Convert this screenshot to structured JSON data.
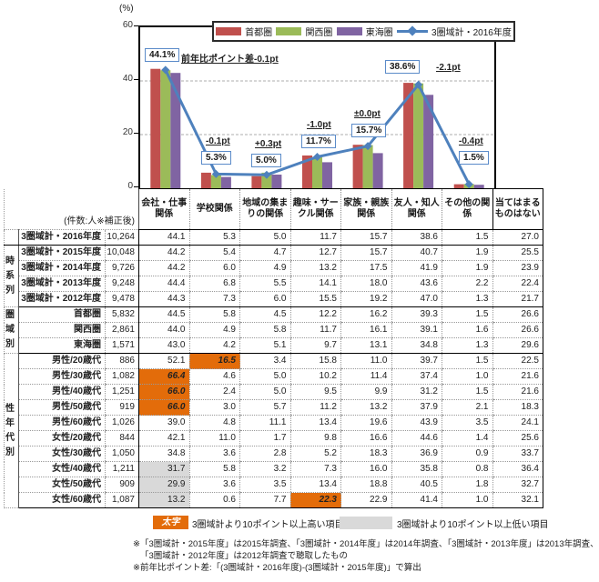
{
  "chart_data": {
    "type": "bar",
    "title": "",
    "ylabel": "(%)",
    "ylim": [
      0,
      60
    ],
    "yticks": [
      0,
      20,
      40,
      60
    ],
    "ytick_labels": [
      "60",
      "40",
      "20",
      "0"
    ],
    "gridlines": [
      20,
      40
    ],
    "legend_position": "top",
    "categories": [
      "会社・仕事関係",
      "学校関係",
      "地域の集まりの関係",
      "趣味・サークル関係",
      "家族・親族関係",
      "友人・知人関係",
      "その他の関係"
    ],
    "series": [
      {
        "name": "首都圏",
        "color": "#C0504D",
        "values": [
          44.5,
          5.8,
          4.5,
          12.2,
          16.2,
          39.3,
          1.5
        ]
      },
      {
        "name": "関西圏",
        "color": "#9BBB59",
        "values": [
          44.0,
          4.9,
          5.8,
          11.7,
          16.1,
          39.1,
          1.6
        ]
      },
      {
        "name": "東海圏",
        "color": "#8064A2",
        "values": [
          43.0,
          4.2,
          5.1,
          9.7,
          13.1,
          34.8,
          1.3
        ]
      }
    ],
    "line_series": {
      "name": "3圏域計・2016年度",
      "color": "#4E81BD",
      "values": [
        44.1,
        5.3,
        5.0,
        11.7,
        15.7,
        38.6,
        1.5
      ]
    },
    "point_labels": [
      {
        "pct": "44.1%",
        "diff": "前年比ポイント差-0.1pt"
      },
      {
        "pct": "5.3%",
        "diff": "-0.1pt"
      },
      {
        "pct": "5.0%",
        "diff": "+0.3pt"
      },
      {
        "pct": "11.7%",
        "diff": "-1.0pt"
      },
      {
        "pct": "15.7%",
        "diff": "±0.0pt"
      },
      {
        "pct": "38.6%",
        "diff": "-2.1pt"
      },
      {
        "pct": "1.5%",
        "diff": "-0.4pt"
      }
    ]
  },
  "table": {
    "count_header": "(件数:人※補正後)",
    "col_headers": [
      "会社・仕事関係",
      "学校関係",
      "地域の集まりの関係",
      "趣味・サークル関係",
      "家族・親族関係",
      "友人・知人関係",
      "その他の関係",
      "当てはまるものはない"
    ],
    "groups": [
      {
        "label": "",
        "rows": [
          {
            "label": "3圏域計・2016年度",
            "n": "10,264",
            "values": [
              "44.1",
              "5.3",
              "5.0",
              "11.7",
              "15.7",
              "38.6",
              "1.5",
              "27.0"
            ],
            "hi": [],
            "lo": []
          }
        ]
      },
      {
        "label": "時系列",
        "rows": [
          {
            "label": "3圏域計・2015年度",
            "n": "10,048",
            "values": [
              "44.2",
              "5.4",
              "4.7",
              "12.7",
              "15.7",
              "40.7",
              "1.9",
              "25.5"
            ],
            "hi": [],
            "lo": []
          },
          {
            "label": "3圏域計・2014年度",
            "n": "9,726",
            "values": [
              "44.2",
              "6.0",
              "4.9",
              "13.2",
              "17.5",
              "41.9",
              "1.9",
              "23.9"
            ],
            "hi": [],
            "lo": []
          },
          {
            "label": "3圏域計・2013年度",
            "n": "9,248",
            "values": [
              "44.4",
              "6.8",
              "5.5",
              "14.1",
              "18.0",
              "43.6",
              "2.2",
              "22.4"
            ],
            "hi": [],
            "lo": []
          },
          {
            "label": "3圏域計・2012年度",
            "n": "9,478",
            "values": [
              "44.3",
              "7.3",
              "6.0",
              "15.5",
              "19.2",
              "47.0",
              "1.3",
              "21.7"
            ],
            "hi": [],
            "lo": []
          }
        ]
      },
      {
        "label": "圏域別",
        "rows": [
          {
            "label": "首都圏",
            "n": "5,832",
            "values": [
              "44.5",
              "5.8",
              "4.5",
              "12.2",
              "16.2",
              "39.3",
              "1.5",
              "26.6"
            ],
            "hi": [],
            "lo": []
          },
          {
            "label": "関西圏",
            "n": "2,861",
            "values": [
              "44.0",
              "4.9",
              "5.8",
              "11.7",
              "16.1",
              "39.1",
              "1.6",
              "26.6"
            ],
            "hi": [],
            "lo": []
          },
          {
            "label": "東海圏",
            "n": "1,571",
            "values": [
              "43.0",
              "4.2",
              "5.1",
              "9.7",
              "13.1",
              "34.8",
              "1.3",
              "29.6"
            ],
            "hi": [],
            "lo": []
          }
        ]
      },
      {
        "label": "性年代別",
        "rows": [
          {
            "label": "男性/20歳代",
            "n": "886",
            "values": [
              "52.1",
              "16.5",
              "3.4",
              "15.8",
              "11.0",
              "39.7",
              "1.5",
              "22.5"
            ],
            "hi": [
              1
            ],
            "lo": []
          },
          {
            "label": "男性/30歳代",
            "n": "1,082",
            "values": [
              "66.4",
              "4.6",
              "5.0",
              "10.2",
              "11.4",
              "37.4",
              "1.0",
              "21.6"
            ],
            "hi": [
              0
            ],
            "lo": []
          },
          {
            "label": "男性/40歳代",
            "n": "1,251",
            "values": [
              "66.0",
              "2.4",
              "5.0",
              "9.5",
              "9.9",
              "31.2",
              "1.5",
              "21.6"
            ],
            "hi": [
              0
            ],
            "lo": []
          },
          {
            "label": "男性/50歳代",
            "n": "919",
            "values": [
              "66.0",
              "3.0",
              "5.7",
              "11.2",
              "13.2",
              "37.9",
              "2.1",
              "18.3"
            ],
            "hi": [
              0
            ],
            "lo": []
          },
          {
            "label": "男性/60歳代",
            "n": "1,026",
            "values": [
              "39.0",
              "4.8",
              "11.1",
              "13.4",
              "19.6",
              "43.9",
              "3.5",
              "24.1"
            ],
            "hi": [],
            "lo": []
          },
          {
            "label": "女性/20歳代",
            "n": "844",
            "values": [
              "42.1",
              "11.0",
              "1.7",
              "9.8",
              "16.6",
              "44.6",
              "1.4",
              "25.6"
            ],
            "hi": [],
            "lo": []
          },
          {
            "label": "女性/30歳代",
            "n": "1,050",
            "values": [
              "34.8",
              "3.6",
              "2.8",
              "5.2",
              "18.3",
              "36.9",
              "0.9",
              "33.7"
            ],
            "hi": [],
            "lo": []
          },
          {
            "label": "女性/40歳代",
            "n": "1,211",
            "values": [
              "31.7",
              "5.8",
              "3.2",
              "7.3",
              "16.0",
              "35.8",
              "0.8",
              "36.4"
            ],
            "hi": [],
            "lo": [
              0
            ]
          },
          {
            "label": "女性/50歳代",
            "n": "909",
            "values": [
              "29.9",
              "3.6",
              "3.5",
              "13.4",
              "18.8",
              "40.5",
              "1.8",
              "32.7"
            ],
            "hi": [],
            "lo": [
              0
            ]
          },
          {
            "label": "女性/60歳代",
            "n": "1,087",
            "values": [
              "13.2",
              "0.6",
              "7.7",
              "22.3",
              "22.9",
              "41.4",
              "1.0",
              "32.1"
            ],
            "hi": [
              3
            ],
            "lo": [
              0
            ]
          }
        ]
      }
    ]
  },
  "footer": {
    "high_box_label": "太字",
    "high_label": "3圏域計より10ポイント以上高い項目",
    "low_label": "3圏域計より10ポイント以上低い項目",
    "notes": [
      "※「3圏域計・2015年度」は2015年調査、「3圏域計・2014年度」は2014年調査、「3圏域計・2013年度」は2013年調査、",
      "「3圏域計・2012年度」は2012年調査で聴取したもの",
      "※前年比ポイント差:「(3圏域計・2016年度)-(3圏域計・2015年度)」で算出"
    ]
  }
}
